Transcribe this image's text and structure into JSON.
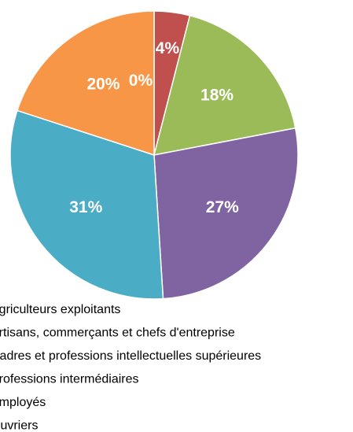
{
  "chart_data": {
    "type": "pie",
    "categories": [
      "Agriculteurs exploitants",
      "Artisans, commerçants et chefs d'entreprise",
      "Cadres et professions intellectuelles supérieures",
      "Professions intermédiaires",
      "Employés",
      "Ouvriers"
    ],
    "values": [
      0,
      4,
      18,
      27,
      31,
      20
    ],
    "value_labels": [
      "0%",
      "4%",
      "18%",
      "27%",
      "31%",
      "20%"
    ],
    "colors": [
      "#4F81BD",
      "#C0504D",
      "#9BBB59",
      "#8064A2",
      "#4BACC6",
      "#F79646"
    ],
    "legend": "bottom"
  }
}
